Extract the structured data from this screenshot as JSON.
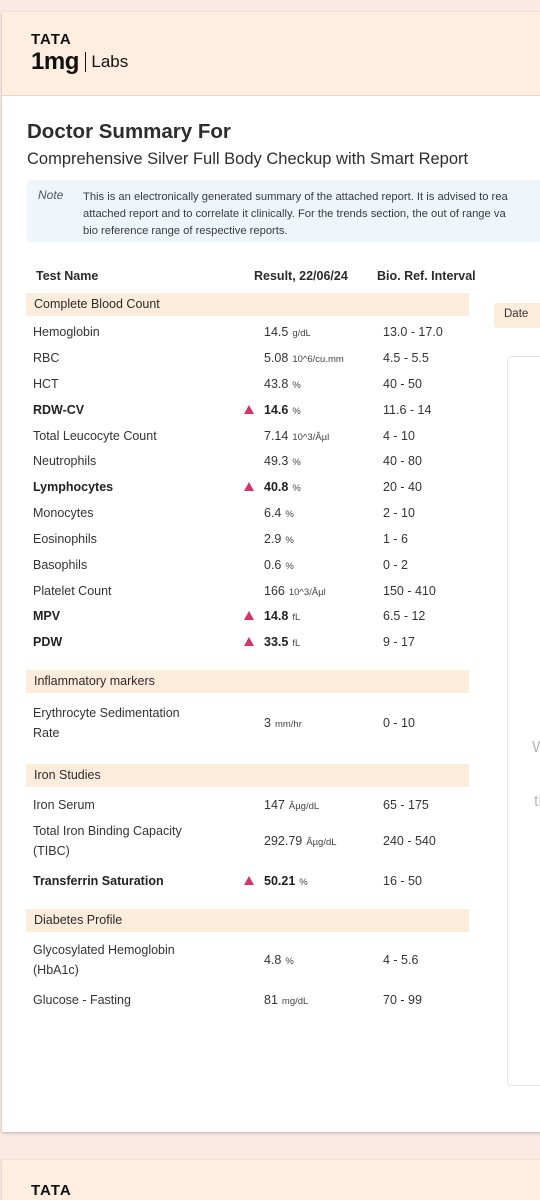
{
  "brand": {
    "tata": "TATA",
    "onemg": "1mg",
    "labs": "Labs"
  },
  "title": "Doctor Summary For",
  "subtitle": "Comprehensive Silver Full Body Checkup with Smart Report",
  "note": {
    "label": "Note",
    "lines": [
      "This is an electronically generated summary of the attached report. It is advised to rea",
      "attached report and to correlate it clinically. For the trends section, the out of range va",
      "bio reference range of respective reports."
    ]
  },
  "table_headers": {
    "name": "Test Name",
    "result": "Result, 22/06/24",
    "ref": "Bio. Ref. Interval"
  },
  "sections": [
    {
      "title": "Complete Blood Count",
      "rows": [
        {
          "name": [
            "Hemoglobin"
          ],
          "value": "14.5",
          "unit": "g/dL",
          "ref": "13.0 - 17.0",
          "abnormal": false
        },
        {
          "name": [
            "RBC"
          ],
          "value": "5.08",
          "unit": "10^6/cu.mm",
          "ref": "4.5 - 5.5",
          "abnormal": false
        },
        {
          "name": [
            "HCT"
          ],
          "value": "43.8",
          "unit": "%",
          "ref": "40 - 50",
          "abnormal": false
        },
        {
          "name": [
            "RDW-CV"
          ],
          "value": "14.6",
          "unit": "%",
          "ref": "11.6 - 14",
          "abnormal": true
        },
        {
          "name": [
            "Total Leucocyte Count"
          ],
          "value": "7.14",
          "unit": "10^3/Âµl",
          "ref": "4 - 10",
          "abnormal": false
        },
        {
          "name": [
            "Neutrophils"
          ],
          "value": "49.3",
          "unit": "%",
          "ref": "40 - 80",
          "abnormal": false
        },
        {
          "name": [
            "Lymphocytes"
          ],
          "value": "40.8",
          "unit": "%",
          "ref": "20 - 40",
          "abnormal": true
        },
        {
          "name": [
            "Monocytes"
          ],
          "value": "6.4",
          "unit": "%",
          "ref": "2 - 10",
          "abnormal": false
        },
        {
          "name": [
            "Eosinophils"
          ],
          "value": "2.9",
          "unit": "%",
          "ref": "1 - 6",
          "abnormal": false
        },
        {
          "name": [
            "Basophils"
          ],
          "value": "0.6",
          "unit": "%",
          "ref": "0 - 2",
          "abnormal": false
        },
        {
          "name": [
            "Platelet Count"
          ],
          "value": "166",
          "unit": "10^3/Âµl",
          "ref": "150 - 410",
          "abnormal": false
        },
        {
          "name": [
            "MPV"
          ],
          "value": "14.8",
          "unit": "fL",
          "ref": "6.5 - 12",
          "abnormal": true
        },
        {
          "name": [
            "PDW"
          ],
          "value": "33.5",
          "unit": "fL",
          "ref": "9 - 17",
          "abnormal": true
        }
      ]
    },
    {
      "title": "Inflammatory markers",
      "rows": [
        {
          "name": [
            "Erythrocyte Sedimentation",
            "Rate"
          ],
          "value": "3",
          "unit": "mm/hr",
          "ref": "0 - 10",
          "abnormal": false
        }
      ]
    },
    {
      "title": "Iron Studies",
      "rows": [
        {
          "name": [
            "Iron Serum"
          ],
          "value": "147",
          "unit": "Âµg/dL",
          "ref": "65 - 175",
          "abnormal": false
        },
        {
          "name": [
            "Total Iron Binding Capacity",
            "(TIBC)"
          ],
          "value": "292.79",
          "unit": "Âµg/dL",
          "ref": "240 - 540",
          "abnormal": false
        },
        {
          "name": [
            "Transferrin Saturation"
          ],
          "value": "50.21",
          "unit": "%",
          "ref": "16 - 50",
          "abnormal": true
        }
      ]
    },
    {
      "title": "Diabetes Profile",
      "rows": [
        {
          "name": [
            "Glycosylated Hemoglobin",
            "(HbA1c)"
          ],
          "value": "4.8",
          "unit": "%",
          "ref": "4 - 5.6",
          "abnormal": false
        },
        {
          "name": [
            "Glucose - Fasting"
          ],
          "value": "81",
          "unit": "mg/dL",
          "ref": "70 - 99",
          "abnormal": false
        }
      ]
    }
  ],
  "side_panel": {
    "date_label": "Date",
    "frag1": "W",
    "frag2": "tl"
  },
  "colors": {
    "section_bg": "#fcecdc",
    "flag": "#d6336c",
    "note_bg": "#eef6fc"
  },
  "footer_brand": "TATA"
}
